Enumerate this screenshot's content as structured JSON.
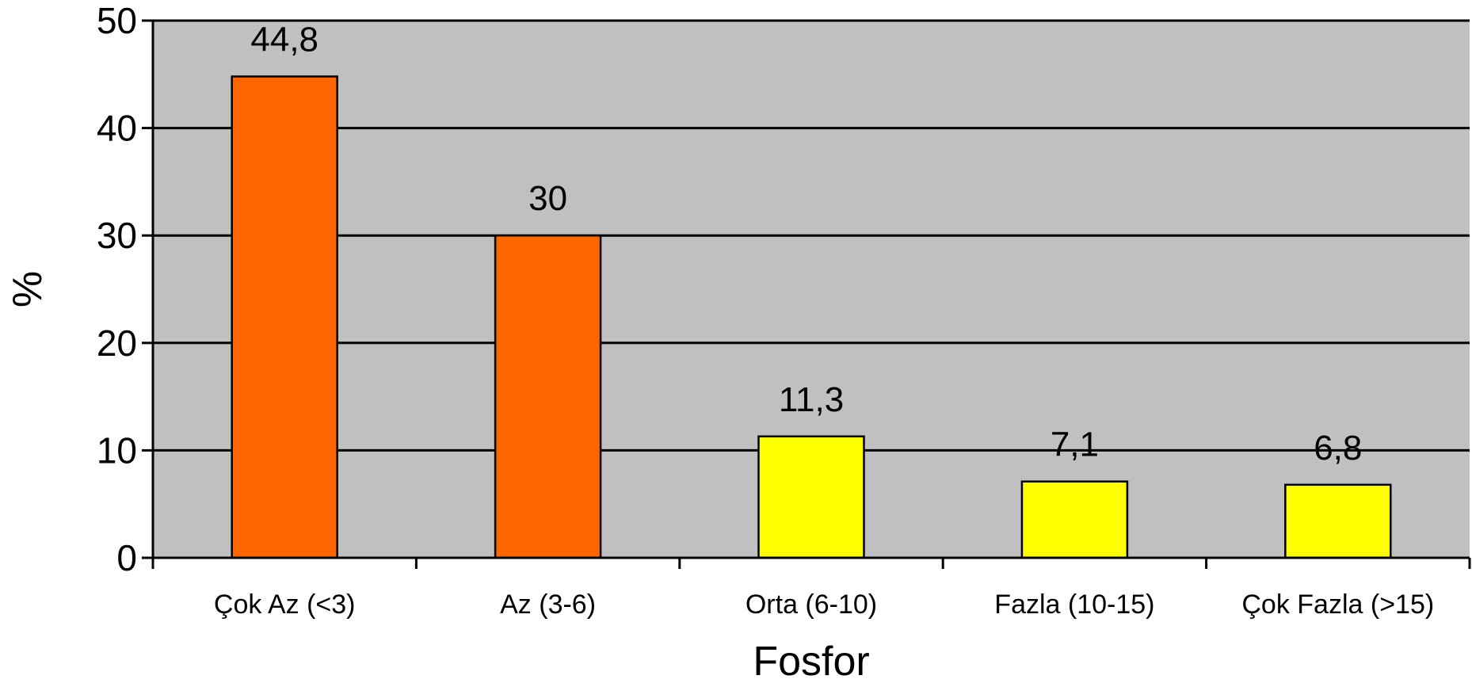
{
  "chart_data": {
    "type": "bar",
    "title": "",
    "xlabel": "Fosfor",
    "ylabel": "%",
    "categories": [
      "Çok Az (<3)",
      "Az (3-6)",
      "Orta (6-10)",
      "Fazla (10-15)",
      "Çok Fazla (>15)"
    ],
    "values": [
      44.8,
      30,
      11.3,
      7.1,
      6.8
    ],
    "value_labels": [
      "44,8",
      "30",
      "11,3",
      "7,1",
      "6,8"
    ],
    "bar_colors": [
      "#ff6600",
      "#ff6600",
      "#ffff00",
      "#ffff00",
      "#ffff00"
    ],
    "ylim": [
      0,
      50
    ],
    "yticks": [
      0,
      10,
      20,
      30,
      40,
      50
    ],
    "ytick_labels": [
      "0",
      "10",
      "20",
      "30",
      "40",
      "50"
    ],
    "grid": true,
    "plot_background": "#c0c0c0"
  }
}
